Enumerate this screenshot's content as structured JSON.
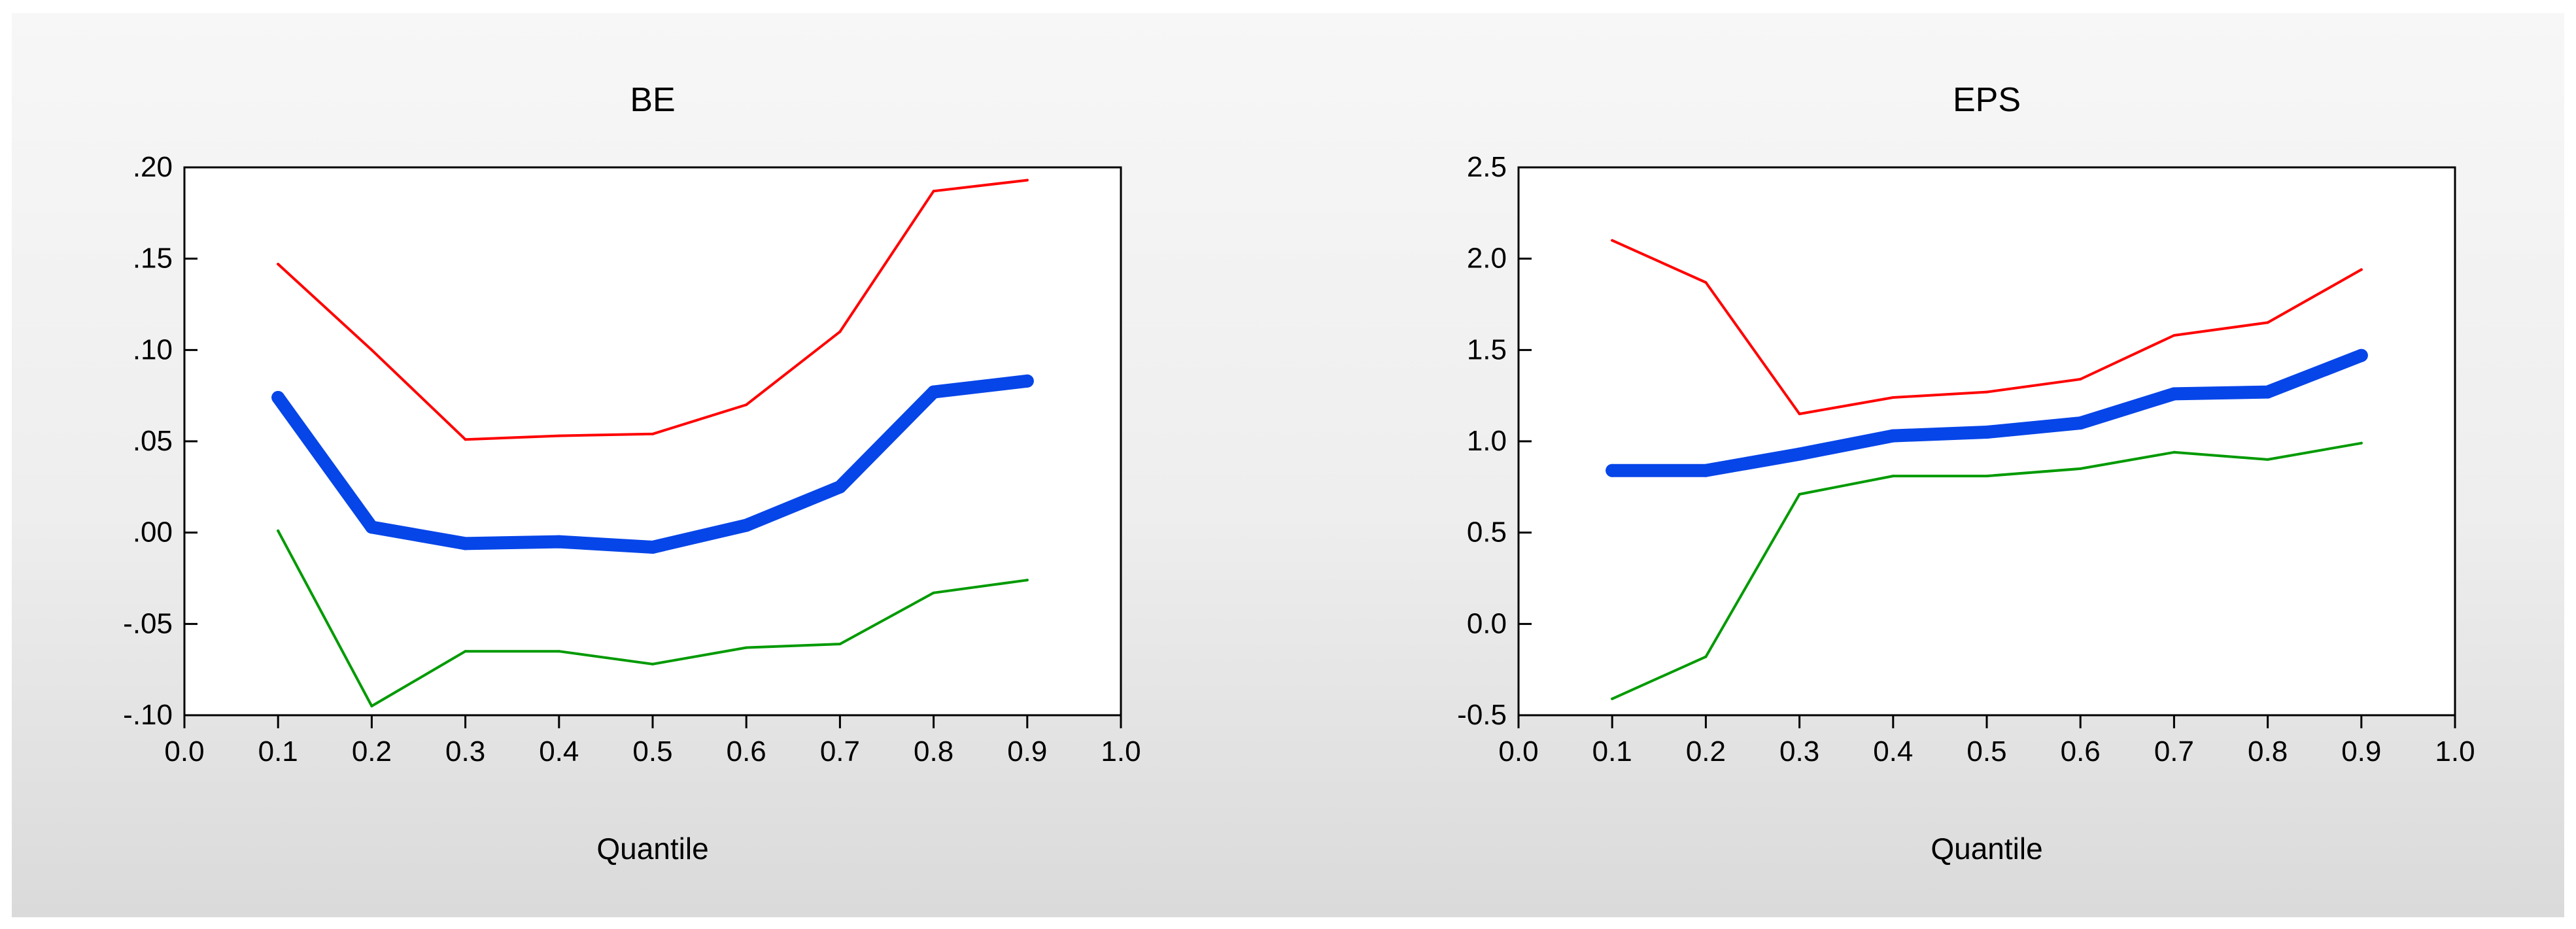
{
  "chart_data": [
    {
      "type": "line",
      "title": "BE",
      "xlabel": "Quantile",
      "ylabel": "",
      "xlim": [
        0.0,
        1.0
      ],
      "ylim": [
        -0.1,
        0.2
      ],
      "xticks": [
        0.0,
        0.1,
        0.2,
        0.3,
        0.4,
        0.5,
        0.6,
        0.7,
        0.8,
        0.9,
        1.0
      ],
      "xtick_labels": [
        "0.0",
        "0.1",
        "0.2",
        "0.3",
        "0.4",
        "0.5",
        "0.6",
        "0.7",
        "0.8",
        "0.9",
        "1.0"
      ],
      "yticks": [
        -0.1,
        -0.05,
        0.0,
        0.05,
        0.1,
        0.15,
        0.2
      ],
      "ytick_labels": [
        "-.10",
        "-.05",
        ".00",
        ".05",
        ".10",
        ".15",
        ".20"
      ],
      "grid": false,
      "x": [
        0.1,
        0.2,
        0.3,
        0.4,
        0.5,
        0.6,
        0.7,
        0.8,
        0.9
      ],
      "series": [
        {
          "role": "upper",
          "color": "#ff0000",
          "values": [
            0.147,
            0.1,
            0.051,
            0.053,
            0.054,
            0.07,
            0.11,
            0.187,
            0.193
          ]
        },
        {
          "role": "estimate",
          "color": "#0645e8",
          "values": [
            0.074,
            0.003,
            -0.006,
            -0.005,
            -0.008,
            0.004,
            0.025,
            0.077,
            0.083
          ]
        },
        {
          "role": "lower",
          "color": "#009a00",
          "values": [
            0.001,
            -0.095,
            -0.065,
            -0.065,
            -0.072,
            -0.063,
            -0.061,
            -0.033,
            -0.026
          ]
        }
      ]
    },
    {
      "type": "line",
      "title": "EPS",
      "xlabel": "Quantile",
      "ylabel": "",
      "xlim": [
        0.0,
        1.0
      ],
      "ylim": [
        -0.5,
        2.5
      ],
      "xticks": [
        0.0,
        0.1,
        0.2,
        0.3,
        0.4,
        0.5,
        0.6,
        0.7,
        0.8,
        0.9,
        1.0
      ],
      "xtick_labels": [
        "0.0",
        "0.1",
        "0.2",
        "0.3",
        "0.4",
        "0.5",
        "0.6",
        "0.7",
        "0.8",
        "0.9",
        "1.0"
      ],
      "yticks": [
        -0.5,
        0.0,
        0.5,
        1.0,
        1.5,
        2.0,
        2.5
      ],
      "ytick_labels": [
        "-0.5",
        "0.0",
        "0.5",
        "1.0",
        "1.5",
        "2.0",
        "2.5"
      ],
      "grid": false,
      "x": [
        0.1,
        0.2,
        0.3,
        0.4,
        0.5,
        0.6,
        0.7,
        0.8,
        0.9
      ],
      "series": [
        {
          "role": "upper",
          "color": "#ff0000",
          "values": [
            2.1,
            1.87,
            1.15,
            1.24,
            1.27,
            1.34,
            1.58,
            1.65,
            1.94
          ]
        },
        {
          "role": "estimate",
          "color": "#0645e8",
          "values": [
            0.84,
            0.84,
            0.93,
            1.03,
            1.05,
            1.1,
            1.26,
            1.27,
            1.47
          ]
        },
        {
          "role": "lower",
          "color": "#009a00",
          "values": [
            -0.41,
            -0.18,
            0.71,
            0.81,
            0.81,
            0.85,
            0.94,
            0.9,
            0.99
          ]
        }
      ]
    }
  ]
}
